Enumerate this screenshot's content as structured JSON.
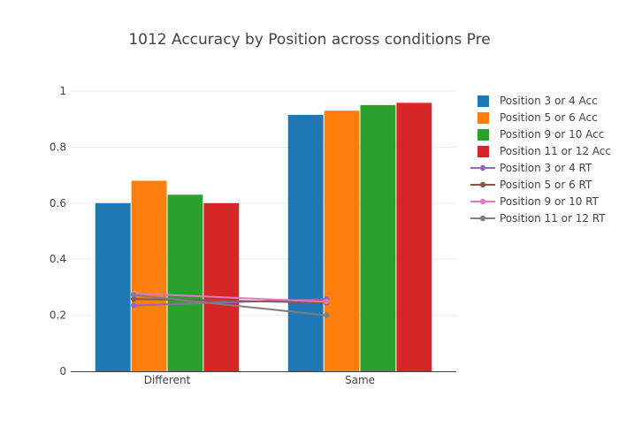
{
  "chart_data": {
    "type": "bar",
    "title": "1012 Accuracy by Position across conditions Pre",
    "xlabel": "",
    "ylabel": "",
    "categories": [
      "Different",
      "Same"
    ],
    "ylim": [
      0,
      1
    ],
    "yticks": [
      0,
      0.2,
      0.4,
      0.6,
      0.8,
      1
    ],
    "ytick_labels": [
      "0",
      "0.2",
      "0.4",
      "0.6",
      "0.8",
      "1"
    ],
    "grid": "horizontal",
    "legend_position": "right",
    "bar_series": [
      {
        "name": "Position 3 or 4 Acc",
        "color": "#1f77b4",
        "values": [
          0.6,
          0.915
        ]
      },
      {
        "name": "Position 5 or 6 Acc",
        "color": "#ff7f0e",
        "values": [
          0.68,
          0.93
        ]
      },
      {
        "name": "Position 9 or 10 Acc",
        "color": "#2ca02c",
        "values": [
          0.63,
          0.95
        ]
      },
      {
        "name": "Position 11 or 12 Acc",
        "color": "#d62728",
        "values": [
          0.6,
          0.958
        ]
      }
    ],
    "line_series": [
      {
        "name": "Position 3 or 4 RT",
        "color": "#9467bd",
        "values": [
          0.235,
          0.258
        ]
      },
      {
        "name": "Position 5 or 6 RT",
        "color": "#8c564b",
        "values": [
          0.258,
          0.245
        ]
      },
      {
        "name": "Position 9 or 10 RT",
        "color": "#e377c2",
        "values": [
          0.278,
          0.248
        ]
      },
      {
        "name": "Position 11 or 12 RT",
        "color": "#7f7f7f",
        "values": [
          0.272,
          0.2
        ]
      }
    ]
  }
}
